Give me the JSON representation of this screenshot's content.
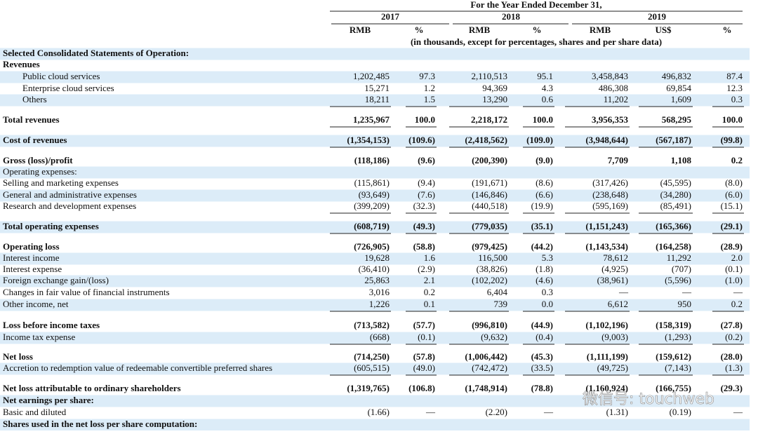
{
  "header": {
    "title": "For the Year Ended December 31,",
    "years": [
      "2017",
      "2018",
      "2019"
    ],
    "units": [
      "RMB",
      "%",
      "RMB",
      "%",
      "RMB",
      "US$",
      "%"
    ],
    "note": "(in thousands, except for percentages, shares and per share data)"
  },
  "rows": [
    {
      "label": "Selected Consolidated Statements of Operation:"
    },
    {
      "label": "Revenues"
    },
    {
      "label": "Public cloud services",
      "values": [
        "1,202,485",
        "97.3",
        "2,110,513",
        "95.1",
        "3,458,843",
        "496,832",
        "87.4"
      ]
    },
    {
      "label": "Enterprise cloud services",
      "values": [
        "15,271",
        "1.2",
        "94,369",
        "4.3",
        "486,308",
        "69,854",
        "12.3"
      ]
    },
    {
      "label": "Others",
      "values": [
        "18,211",
        "1.5",
        "13,290",
        "0.6",
        "11,202",
        "1,609",
        "0.3"
      ]
    },
    {
      "label": "Total revenues",
      "values": [
        "1,235,967",
        "100.0",
        "2,218,172",
        "100.0",
        "3,956,353",
        "568,295",
        "100.0"
      ]
    },
    {
      "label": "Cost of revenues",
      "values": [
        "(1,354,153)",
        "(109.6)",
        "(2,418,562)",
        "(109.0)",
        "(3,948,644)",
        "(567,187)",
        "(99.8)"
      ]
    },
    {
      "label": "Gross (loss)/profit",
      "values": [
        "(118,186)",
        "(9.6)",
        "(200,390)",
        "(9.0)",
        "7,709",
        "1,108",
        "0.2"
      ]
    },
    {
      "label": "Operating expenses:"
    },
    {
      "label": "Selling and marketing expenses",
      "values": [
        "(115,861)",
        "(9.4)",
        "(191,671)",
        "(8.6)",
        "(317,426)",
        "(45,595)",
        "(8.0)"
      ]
    },
    {
      "label": "General and administrative expenses",
      "values": [
        "(93,649)",
        "(7.6)",
        "(146,846)",
        "(6.6)",
        "(238,648)",
        "(34,280)",
        "(6.0)"
      ]
    },
    {
      "label": "Research and development expenses",
      "values": [
        "(399,209)",
        "(32.3)",
        "(440,518)",
        "(19.9)",
        "(595,169)",
        "(85,491)",
        "(15.1)"
      ]
    },
    {
      "label": "Total operating expenses",
      "values": [
        "(608,719)",
        "(49.3)",
        "(779,035)",
        "(35.1)",
        "(1,151,243)",
        "(165,366)",
        "(29.1)"
      ]
    },
    {
      "label": "Operating loss",
      "values": [
        "(726,905)",
        "(58.8)",
        "(979,425)",
        "(44.2)",
        "(1,143,534)",
        "(164,258)",
        "(28.9)"
      ]
    },
    {
      "label": "Interest income",
      "values": [
        "19,628",
        "1.6",
        "116,500",
        "5.3",
        "78,612",
        "11,292",
        "2.0"
      ]
    },
    {
      "label": "Interest expense",
      "values": [
        "(36,410)",
        "(2.9)",
        "(38,826)",
        "(1.8)",
        "(4,925)",
        "(707)",
        "(0.1)"
      ]
    },
    {
      "label": "Foreign exchange gain/(loss)",
      "values": [
        "25,863",
        "2.1",
        "(102,202)",
        "(4.6)",
        "(38,961)",
        "(5,596)",
        "(1.0)"
      ]
    },
    {
      "label": "Changes in fair value of financial instruments",
      "values": [
        "3,016",
        "0.2",
        "6,404",
        "0.3",
        "—",
        "—",
        "—"
      ]
    },
    {
      "label": "Other income, net",
      "values": [
        "1,226",
        "0.1",
        "739",
        "0.0",
        "6,612",
        "950",
        "0.2"
      ]
    },
    {
      "label": "Loss before income taxes",
      "values": [
        "(713,582)",
        "(57.7)",
        "(996,810)",
        "(44.9)",
        "(1,102,196)",
        "(158,319)",
        "(27.8)"
      ]
    },
    {
      "label": "Income tax expense",
      "values": [
        "(668)",
        "(0.1)",
        "(9,632)",
        "(0.4)",
        "(9,003)",
        "(1,293)",
        "(0.2)"
      ]
    },
    {
      "label": "Net loss",
      "values": [
        "(714,250)",
        "(57.8)",
        "(1,006,442)",
        "(45.3)",
        "(1,111,199)",
        "(159,612)",
        "(28.0)"
      ]
    },
    {
      "label": "Accretion to redemption value of redeemable convertible preferred shares",
      "values": [
        "(605,515)",
        "(49.0)",
        "(742,472)",
        "(33.5)",
        "(49,725)",
        "(7,143)",
        "(1.3)"
      ]
    },
    {
      "label": "Net loss attributable to ordinary shareholders",
      "values": [
        "(1,319,765)",
        "(106.8)",
        "(1,748,914)",
        "(78.8)",
        "(1,160,924)",
        "(166,755)",
        "(29.3)"
      ]
    },
    {
      "label": "Net earnings per share:"
    },
    {
      "label": "Basic and diluted",
      "values": [
        "(1.66)",
        "—",
        "(2.20)",
        "—",
        "(1.31)",
        "(0.19)",
        "—"
      ]
    },
    {
      "label": "Shares used in the net loss per share computation:"
    }
  ],
  "watermark": "微信号: touchweb"
}
